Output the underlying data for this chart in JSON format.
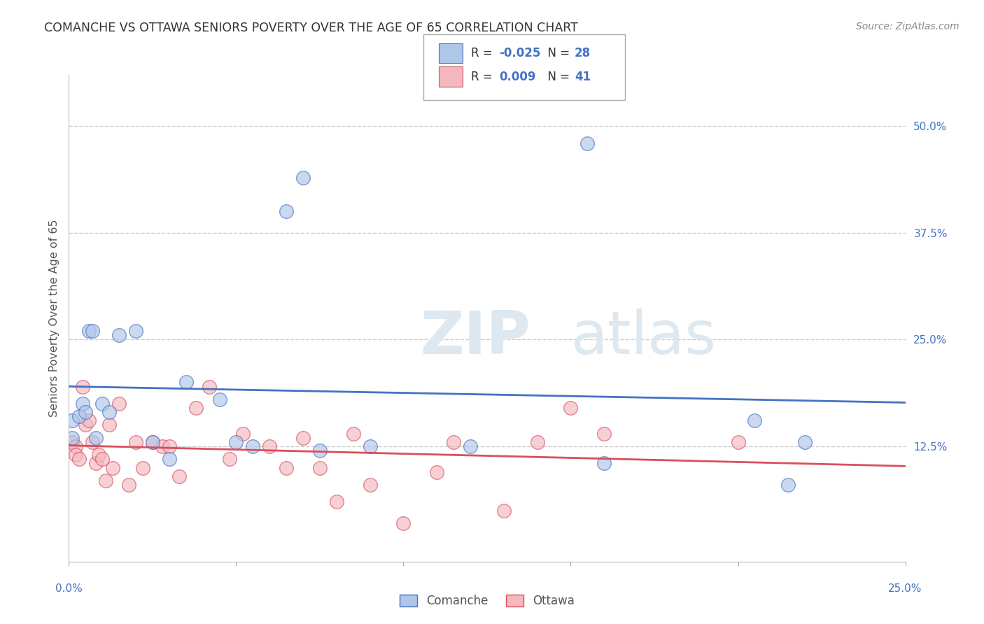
{
  "title": "COMANCHE VS OTTAWA SENIORS POVERTY OVER THE AGE OF 65 CORRELATION CHART",
  "source": "Source: ZipAtlas.com",
  "ylabel": "Seniors Poverty Over the Age of 65",
  "right_yticks": [
    "50.0%",
    "37.5%",
    "25.0%",
    "12.5%"
  ],
  "right_ytick_vals": [
    0.5,
    0.375,
    0.25,
    0.125
  ],
  "xlim": [
    0.0,
    0.25
  ],
  "ylim": [
    -0.01,
    0.56
  ],
  "comanche_R": "-0.025",
  "comanche_N": "28",
  "ottawa_R": "0.009",
  "ottawa_N": "41",
  "comanche_color": "#aec6e8",
  "ottawa_color": "#f4b8c1",
  "comanche_line_color": "#4472c4",
  "ottawa_line_color": "#d94f5c",
  "comanche_x": [
    0.001,
    0.001,
    0.003,
    0.004,
    0.005,
    0.006,
    0.007,
    0.008,
    0.01,
    0.012,
    0.015,
    0.02,
    0.025,
    0.03,
    0.035,
    0.045,
    0.05,
    0.055,
    0.065,
    0.07,
    0.075,
    0.09,
    0.12,
    0.155,
    0.16,
    0.205,
    0.215,
    0.22
  ],
  "comanche_y": [
    0.155,
    0.135,
    0.16,
    0.175,
    0.165,
    0.26,
    0.26,
    0.135,
    0.175,
    0.165,
    0.255,
    0.26,
    0.13,
    0.11,
    0.2,
    0.18,
    0.13,
    0.125,
    0.4,
    0.44,
    0.12,
    0.125,
    0.125,
    0.48,
    0.105,
    0.155,
    0.08,
    0.13
  ],
  "ottawa_x": [
    0.001,
    0.002,
    0.002,
    0.003,
    0.004,
    0.005,
    0.006,
    0.007,
    0.008,
    0.009,
    0.01,
    0.011,
    0.012,
    0.013,
    0.015,
    0.018,
    0.02,
    0.022,
    0.025,
    0.028,
    0.03,
    0.033,
    0.038,
    0.042,
    0.048,
    0.052,
    0.06,
    0.065,
    0.07,
    0.075,
    0.08,
    0.085,
    0.09,
    0.1,
    0.11,
    0.115,
    0.13,
    0.14,
    0.15,
    0.16,
    0.2
  ],
  "ottawa_y": [
    0.13,
    0.125,
    0.115,
    0.11,
    0.195,
    0.15,
    0.155,
    0.13,
    0.105,
    0.115,
    0.11,
    0.085,
    0.15,
    0.1,
    0.175,
    0.08,
    0.13,
    0.1,
    0.13,
    0.125,
    0.125,
    0.09,
    0.17,
    0.195,
    0.11,
    0.14,
    0.125,
    0.1,
    0.135,
    0.1,
    0.06,
    0.14,
    0.08,
    0.035,
    0.095,
    0.13,
    0.05,
    0.13,
    0.17,
    0.14,
    0.13
  ],
  "watermark_zip": "ZIP",
  "watermark_atlas": "atlas",
  "background_color": "#ffffff",
  "grid_color": "#cccccc",
  "legend_comanche_label": "Comanche",
  "legend_ottawa_label": "Ottawa"
}
